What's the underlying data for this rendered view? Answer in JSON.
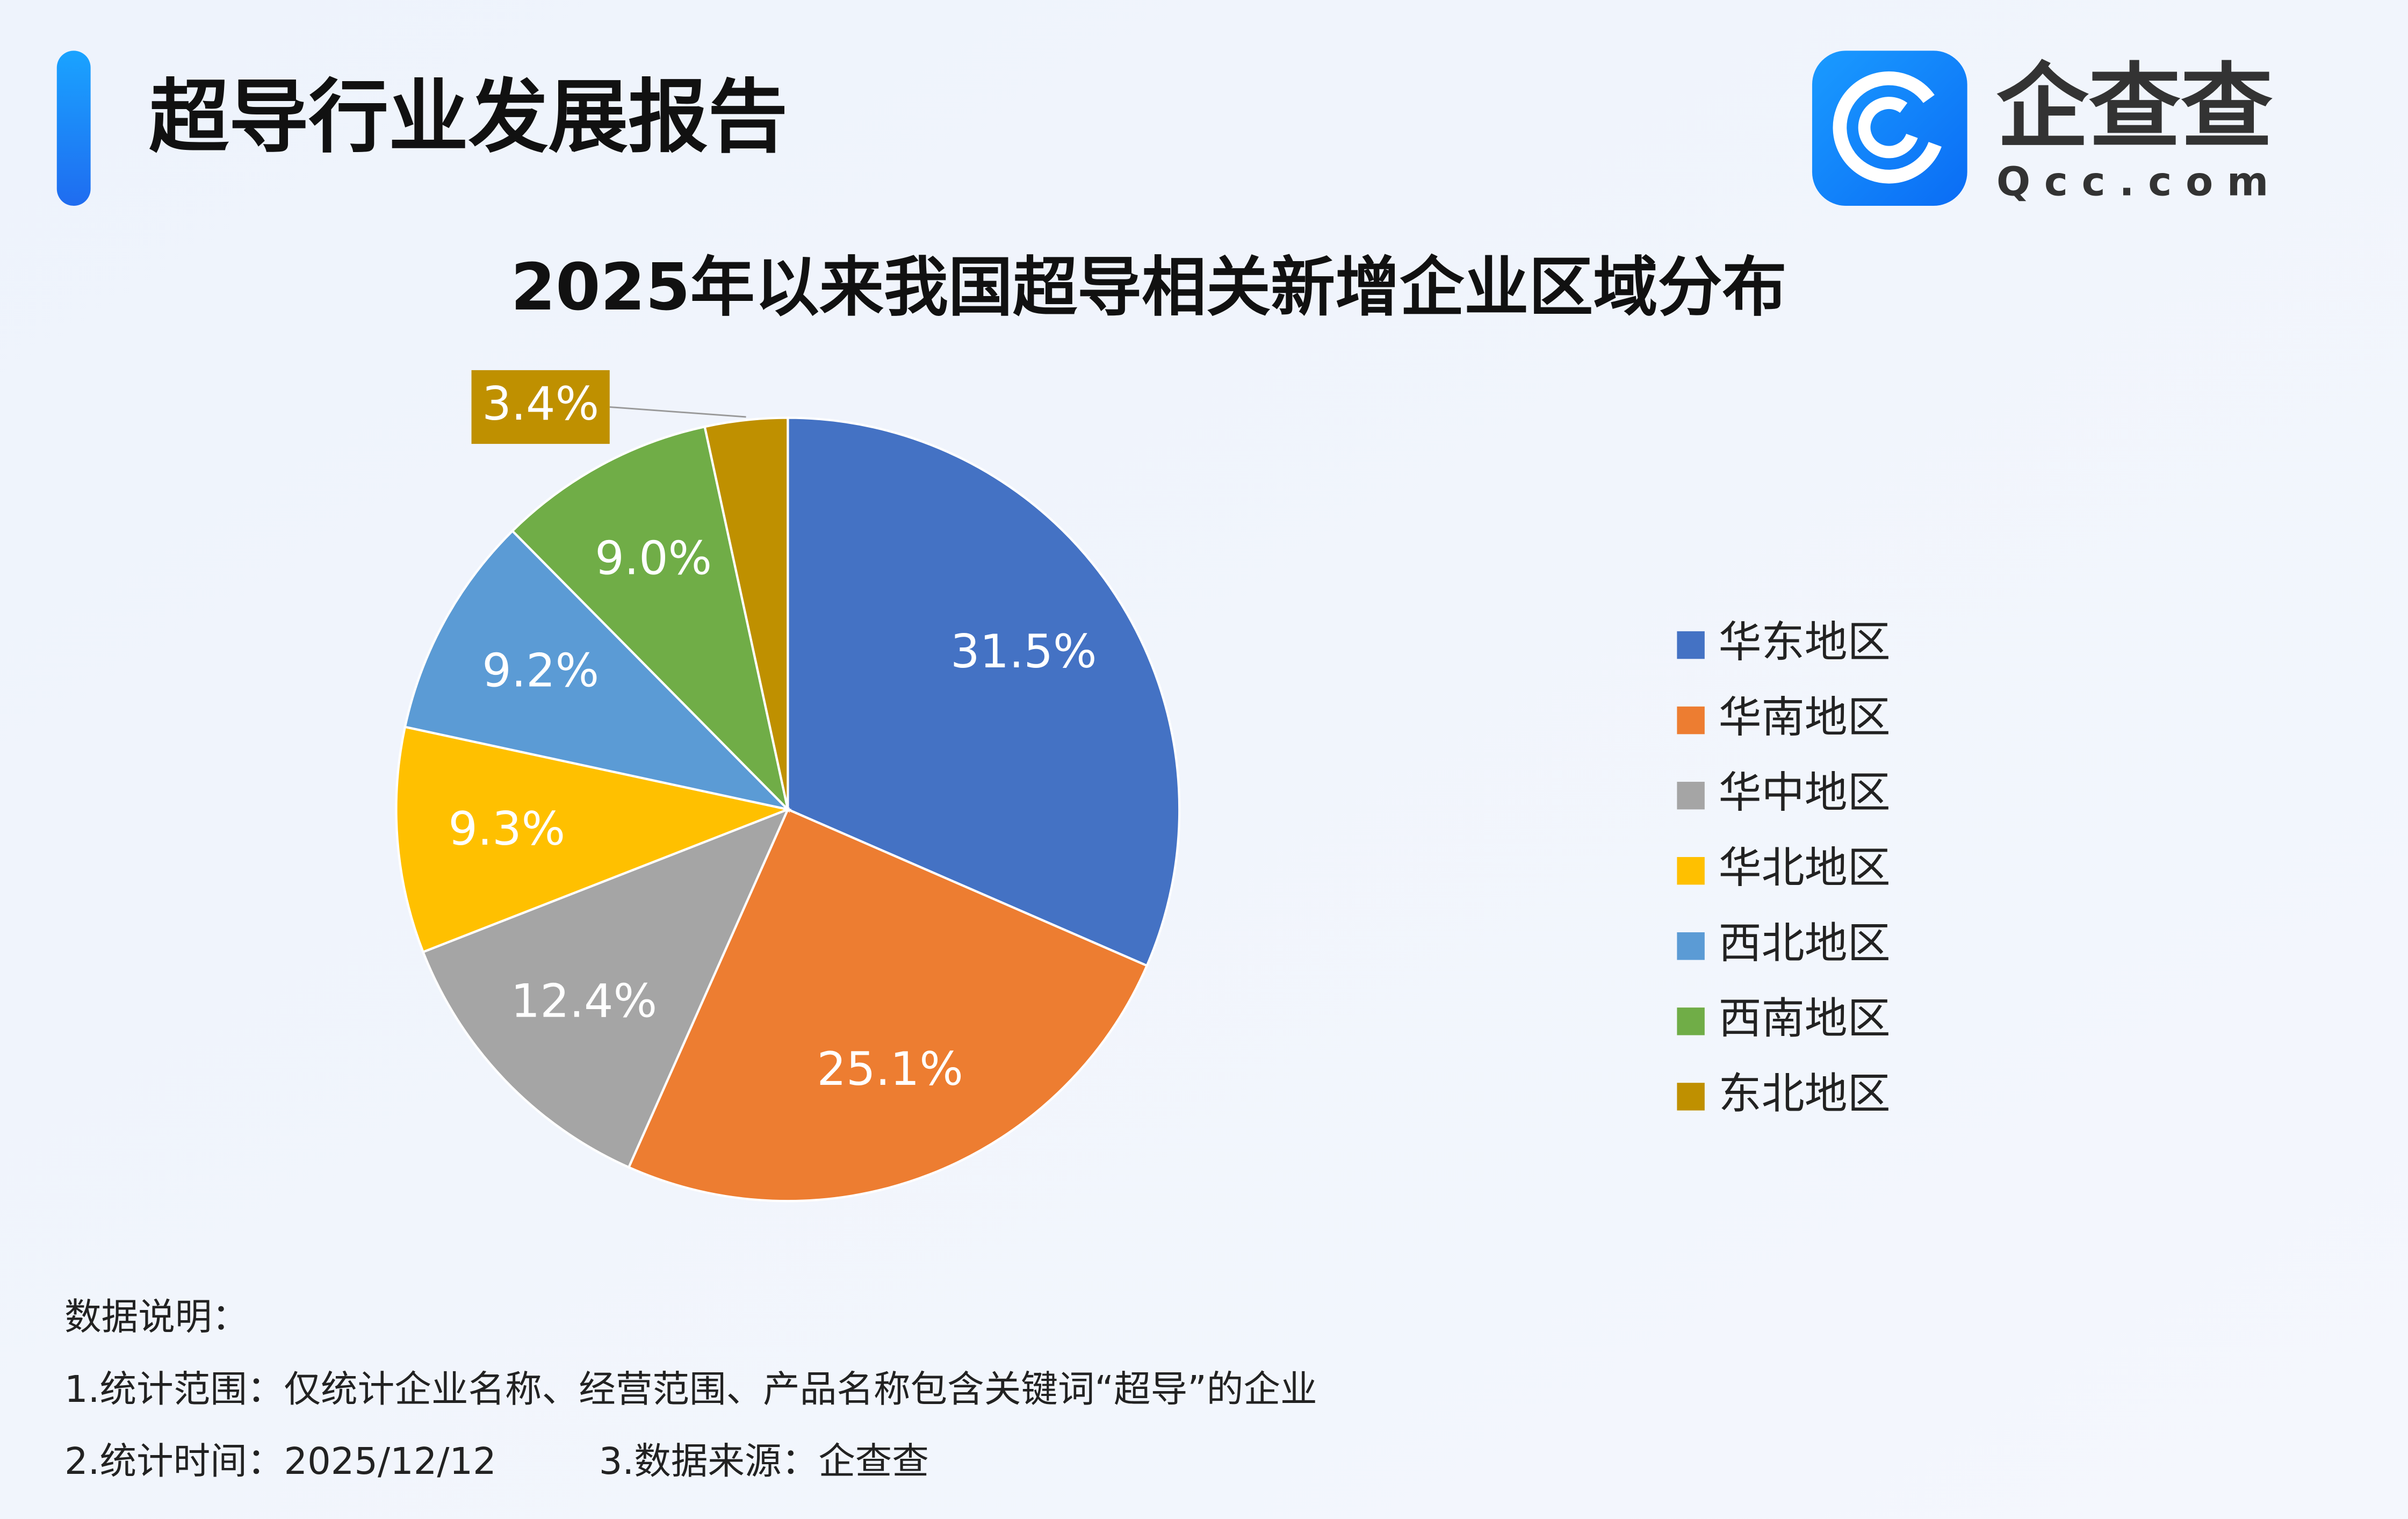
{
  "header": {
    "title": "超导行业发展报告",
    "logo_text": "企查查",
    "logo_domain": "Qcc.com"
  },
  "chart_data": {
    "type": "pie",
    "title": "2025年以来我国超导相关新增企业区域分布",
    "categories": [
      "华东地区",
      "华南地区",
      "华中地区",
      "华北地区",
      "西北地区",
      "西南地区",
      "东北地区"
    ],
    "values": [
      31.5,
      25.1,
      12.4,
      9.3,
      9.2,
      9.0,
      3.4
    ],
    "value_labels": [
      "31.5%",
      "25.1%",
      "12.4%",
      "9.3%",
      "9.2%",
      "9.0%",
      "3.4%"
    ],
    "colors": [
      "#4472c4",
      "#ed7d31",
      "#a5a5a5",
      "#ffc000",
      "#5b9bd5",
      "#70ad47",
      "#bf9000"
    ],
    "legend": "right"
  },
  "notes": {
    "heading": "数据说明：",
    "scope": "1.统计范围：仅统计企业名称、经营范围、产品名称包含关键词“超导”的企业",
    "time": "2.统计时间：2025/12/12",
    "source": "3.数据来源：企查查"
  }
}
